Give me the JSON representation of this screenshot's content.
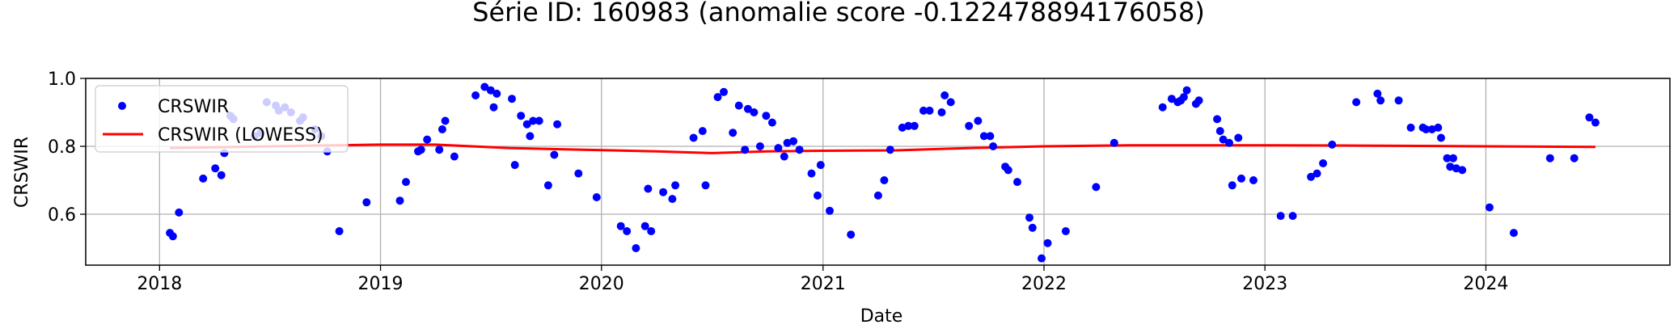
{
  "chart_data": {
    "type": "scatter",
    "title": "Série ID: 160983 (anomalie score -0.122478894176058)",
    "xlabel": "Date",
    "ylabel": "CRSWIR",
    "xlim": [
      "2017-09-01",
      "2024-10-31"
    ],
    "ylim": [
      0.45,
      1.0
    ],
    "xticks": [
      "2018",
      "2019",
      "2020",
      "2021",
      "2022",
      "2023",
      "2024"
    ],
    "yticks": [
      "0.6",
      "0.8",
      "1.0"
    ],
    "grid": true,
    "legend_position": "top-left",
    "colors": {
      "points": "#0000ff",
      "lowess": "#ff0000",
      "grid": "#b0b0b0"
    },
    "series": [
      {
        "name": "CRSWIR",
        "mode": "markers",
        "points": [
          [
            "2018-01-18",
            0.545
          ],
          [
            "2018-01-23",
            0.535
          ],
          [
            "2018-02-02",
            0.605
          ],
          [
            "2018-03-14",
            0.705
          ],
          [
            "2018-04-03",
            0.735
          ],
          [
            "2018-04-13",
            0.715
          ],
          [
            "2018-04-18",
            0.78
          ],
          [
            "2018-04-28",
            0.89
          ],
          [
            "2018-05-03",
            0.88
          ],
          [
            "2018-06-07",
            0.83
          ],
          [
            "2018-06-17",
            0.84
          ],
          [
            "2018-06-27",
            0.93
          ],
          [
            "2018-07-12",
            0.92
          ],
          [
            "2018-07-17",
            0.905
          ],
          [
            "2018-07-27",
            0.915
          ],
          [
            "2018-08-06",
            0.9
          ],
          [
            "2018-08-21",
            0.875
          ],
          [
            "2018-08-26",
            0.885
          ],
          [
            "2018-09-15",
            0.85
          ],
          [
            "2018-09-25",
            0.83
          ],
          [
            "2018-10-05",
            0.785
          ],
          [
            "2018-10-25",
            0.55
          ],
          [
            "2018-12-09",
            0.635
          ],
          [
            "2019-02-02",
            0.64
          ],
          [
            "2019-02-12",
            0.695
          ],
          [
            "2019-03-04",
            0.785
          ],
          [
            "2019-03-09",
            0.79
          ],
          [
            "2019-03-19",
            0.82
          ],
          [
            "2019-04-08",
            0.79
          ],
          [
            "2019-04-13",
            0.85
          ],
          [
            "2019-04-18",
            0.875
          ],
          [
            "2019-05-03",
            0.77
          ],
          [
            "2019-06-07",
            0.95
          ],
          [
            "2019-06-22",
            0.975
          ],
          [
            "2019-07-02",
            0.965
          ],
          [
            "2019-07-07",
            0.915
          ],
          [
            "2019-07-12",
            0.955
          ],
          [
            "2019-08-06",
            0.94
          ],
          [
            "2019-08-11",
            0.745
          ],
          [
            "2019-08-21",
            0.89
          ],
          [
            "2019-08-31",
            0.865
          ],
          [
            "2019-09-05",
            0.83
          ],
          [
            "2019-09-10",
            0.875
          ],
          [
            "2019-09-20",
            0.875
          ],
          [
            "2019-10-05",
            0.685
          ],
          [
            "2019-10-15",
            0.775
          ],
          [
            "2019-10-20",
            0.865
          ],
          [
            "2019-11-24",
            0.72
          ],
          [
            "2019-12-24",
            0.65
          ],
          [
            "2020-02-02",
            0.565
          ],
          [
            "2020-02-12",
            0.55
          ],
          [
            "2020-02-27",
            0.5
          ],
          [
            "2020-03-13",
            0.565
          ],
          [
            "2020-03-18",
            0.675
          ],
          [
            "2020-03-23",
            0.55
          ],
          [
            "2020-04-12",
            0.665
          ],
          [
            "2020-04-27",
            0.645
          ],
          [
            "2020-05-02",
            0.685
          ],
          [
            "2020-06-01",
            0.825
          ],
          [
            "2020-06-16",
            0.845
          ],
          [
            "2020-06-21",
            0.685
          ],
          [
            "2020-07-11",
            0.945
          ],
          [
            "2020-07-21",
            0.96
          ],
          [
            "2020-08-05",
            0.84
          ],
          [
            "2020-08-15",
            0.92
          ],
          [
            "2020-08-25",
            0.79
          ],
          [
            "2020-08-30",
            0.91
          ],
          [
            "2020-09-09",
            0.9
          ],
          [
            "2020-09-19",
            0.8
          ],
          [
            "2020-09-29",
            0.89
          ],
          [
            "2020-10-09",
            0.87
          ],
          [
            "2020-10-19",
            0.795
          ],
          [
            "2020-10-29",
            0.77
          ],
          [
            "2020-11-03",
            0.81
          ],
          [
            "2020-11-13",
            0.815
          ],
          [
            "2020-11-23",
            0.79
          ],
          [
            "2020-12-13",
            0.72
          ],
          [
            "2020-12-23",
            0.655
          ],
          [
            "2020-12-28",
            0.745
          ],
          [
            "2021-01-12",
            0.61
          ],
          [
            "2021-02-16",
            0.54
          ],
          [
            "2021-04-02",
            0.655
          ],
          [
            "2021-04-12",
            0.7
          ],
          [
            "2021-04-22",
            0.79
          ],
          [
            "2021-05-12",
            0.855
          ],
          [
            "2021-05-22",
            0.86
          ],
          [
            "2021-06-01",
            0.86
          ],
          [
            "2021-06-16",
            0.905
          ],
          [
            "2021-06-26",
            0.905
          ],
          [
            "2021-07-16",
            0.9
          ],
          [
            "2021-07-21",
            0.95
          ],
          [
            "2021-07-31",
            0.93
          ],
          [
            "2021-08-30",
            0.86
          ],
          [
            "2021-09-14",
            0.875
          ],
          [
            "2021-09-24",
            0.83
          ],
          [
            "2021-10-04",
            0.83
          ],
          [
            "2021-10-09",
            0.8
          ],
          [
            "2021-10-29",
            0.74
          ],
          [
            "2021-11-03",
            0.73
          ],
          [
            "2021-11-18",
            0.695
          ],
          [
            "2021-12-08",
            0.59
          ],
          [
            "2021-12-13",
            0.56
          ],
          [
            "2021-12-28",
            0.47
          ],
          [
            "2022-01-07",
            0.515
          ],
          [
            "2022-02-06",
            0.55
          ],
          [
            "2022-03-28",
            0.68
          ],
          [
            "2022-04-27",
            0.81
          ],
          [
            "2022-07-16",
            0.915
          ],
          [
            "2022-07-31",
            0.94
          ],
          [
            "2022-08-10",
            0.93
          ],
          [
            "2022-08-15",
            0.935
          ],
          [
            "2022-08-20",
            0.945
          ],
          [
            "2022-08-25",
            0.965
          ],
          [
            "2022-09-09",
            0.925
          ],
          [
            "2022-09-14",
            0.935
          ],
          [
            "2022-10-14",
            0.88
          ],
          [
            "2022-10-19",
            0.845
          ],
          [
            "2022-10-24",
            0.82
          ],
          [
            "2022-11-03",
            0.81
          ],
          [
            "2022-11-08",
            0.685
          ],
          [
            "2022-11-18",
            0.825
          ],
          [
            "2022-11-23",
            0.705
          ],
          [
            "2022-12-13",
            0.7
          ],
          [
            "2023-01-27",
            0.595
          ],
          [
            "2023-02-16",
            0.595
          ],
          [
            "2023-03-18",
            0.71
          ],
          [
            "2023-03-28",
            0.72
          ],
          [
            "2023-04-07",
            0.75
          ],
          [
            "2023-04-22",
            0.805
          ],
          [
            "2023-06-01",
            0.93
          ],
          [
            "2023-07-06",
            0.955
          ],
          [
            "2023-07-11",
            0.935
          ],
          [
            "2023-08-10",
            0.935
          ],
          [
            "2023-08-30",
            0.855
          ],
          [
            "2023-09-19",
            0.855
          ],
          [
            "2023-09-24",
            0.85
          ],
          [
            "2023-10-04",
            0.85
          ],
          [
            "2023-10-14",
            0.855
          ],
          [
            "2023-10-19",
            0.825
          ],
          [
            "2023-10-29",
            0.765
          ],
          [
            "2023-11-03",
            0.74
          ],
          [
            "2023-11-08",
            0.765
          ],
          [
            "2023-11-13",
            0.735
          ],
          [
            "2023-11-23",
            0.73
          ],
          [
            "2024-01-07",
            0.62
          ],
          [
            "2024-02-16",
            0.545
          ],
          [
            "2024-04-16",
            0.765
          ],
          [
            "2024-05-26",
            0.765
          ],
          [
            "2024-06-20",
            0.885
          ],
          [
            "2024-06-30",
            0.87
          ]
        ]
      },
      {
        "name": "CRSWIR (LOWESS)",
        "mode": "line",
        "points": [
          [
            "2018-01-18",
            0.795
          ],
          [
            "2018-07-01",
            0.8
          ],
          [
            "2019-01-01",
            0.805
          ],
          [
            "2019-04-01",
            0.805
          ],
          [
            "2019-08-01",
            0.795
          ],
          [
            "2019-12-01",
            0.79
          ],
          [
            "2020-04-01",
            0.785
          ],
          [
            "2020-07-01",
            0.78
          ],
          [
            "2020-10-01",
            0.785
          ],
          [
            "2021-01-01",
            0.787
          ],
          [
            "2021-05-01",
            0.788
          ],
          [
            "2021-09-01",
            0.795
          ],
          [
            "2022-01-01",
            0.8
          ],
          [
            "2022-06-01",
            0.803
          ],
          [
            "2023-01-01",
            0.803
          ],
          [
            "2023-07-01",
            0.802
          ],
          [
            "2024-01-01",
            0.8
          ],
          [
            "2024-06-30",
            0.798
          ]
        ]
      }
    ]
  }
}
